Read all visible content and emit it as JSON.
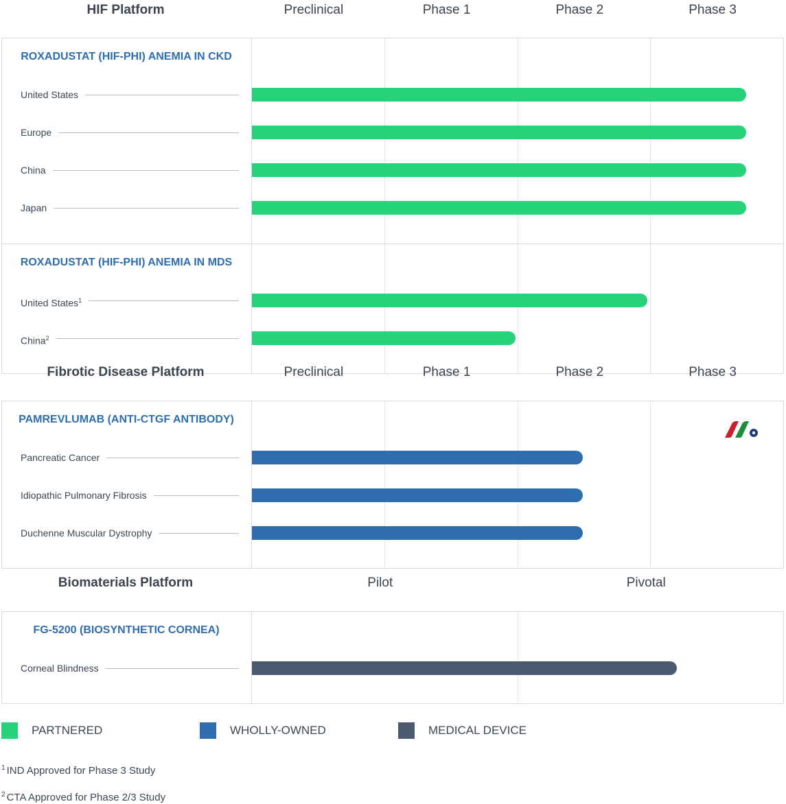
{
  "colors": {
    "partnered": "#27d27a",
    "wholly_owned": "#2e6eae",
    "medical_device": "#4b5a6e",
    "title_blue": "#2e6eae"
  },
  "sections": [
    {
      "title": "HIF Platform",
      "stages": [
        "Preclinical",
        "Phase 1",
        "Phase 2",
        "Phase 3"
      ],
      "programs": [
        {
          "name": "ROXADUSTAT (HIF-PHI) ANEMIA IN CKD",
          "rows": [
            {
              "label": "United States",
              "sup": "",
              "progress": 0.93,
              "type": "partnered"
            },
            {
              "label": "Europe",
              "sup": "",
              "progress": 0.93,
              "type": "partnered"
            },
            {
              "label": "China",
              "sup": "",
              "progress": 0.93,
              "type": "partnered"
            },
            {
              "label": "Japan",
              "sup": "",
              "progress": 0.93,
              "type": "partnered"
            }
          ]
        },
        {
          "name": "ROXADUSTAT (HIF-PHI) ANEMIA IN MDS",
          "rows": [
            {
              "label": "United States",
              "sup": "1",
              "progress": 0.745,
              "type": "partnered"
            },
            {
              "label": "China",
              "sup": "2",
              "progress": 0.497,
              "type": "partnered"
            }
          ]
        }
      ]
    },
    {
      "title": "Fibrotic Disease Platform",
      "stages": [
        "Preclinical",
        "Phase 1",
        "Phase 2",
        "Phase 3"
      ],
      "programs": [
        {
          "name": "PAMREVLUMAB (ANTI-CTGF ANTIBODY)",
          "rows": [
            {
              "label": "Pancreatic Cancer",
              "sup": "",
              "progress": 0.623,
              "type": "wholly_owned"
            },
            {
              "label": "Idiopathic Pulmonary Fibrosis",
              "sup": "",
              "progress": 0.623,
              "type": "wholly_owned"
            },
            {
              "label": "Duchenne Muscular Dystrophy",
              "sup": "",
              "progress": 0.623,
              "type": "wholly_owned"
            }
          ]
        }
      ]
    },
    {
      "title": "Biomaterials Platform",
      "stages": [
        "Pilot",
        "Pivotal"
      ],
      "programs": [
        {
          "name": "FG-5200 (BIOSYNTHETIC CORNEA)",
          "rows": [
            {
              "label": "Corneal Blindness",
              "sup": "",
              "progress": 0.8,
              "type": "medical_device"
            }
          ]
        }
      ]
    }
  ],
  "legend": [
    {
      "label": "PARTNERED",
      "type": "partnered"
    },
    {
      "label": "WHOLLY-OWNED",
      "type": "wholly_owned"
    },
    {
      "label": "MEDICAL DEVICE",
      "type": "medical_device"
    }
  ],
  "footnotes": [
    {
      "num": "1",
      "text": "IND Approved for Phase 3 Study"
    },
    {
      "num": "2",
      "text": "CTA Approved for Phase 2/3 Study"
    }
  ],
  "chart_data": {
    "type": "bar",
    "orientation": "horizontal",
    "progress_unit": "fraction of the stage columns shown in each section",
    "categories": [
      "United States",
      "Europe",
      "China",
      "Japan",
      "United States",
      "China",
      "Pancreatic Cancer",
      "Idiopathic Pulmonary Fibrosis",
      "Duchenne Muscular Dystrophy",
      "Corneal Blindness"
    ],
    "values": [
      0.93,
      0.93,
      0.93,
      0.93,
      0.745,
      0.497,
      0.623,
      0.623,
      0.623,
      0.8
    ],
    "legend_position": "bottom"
  }
}
